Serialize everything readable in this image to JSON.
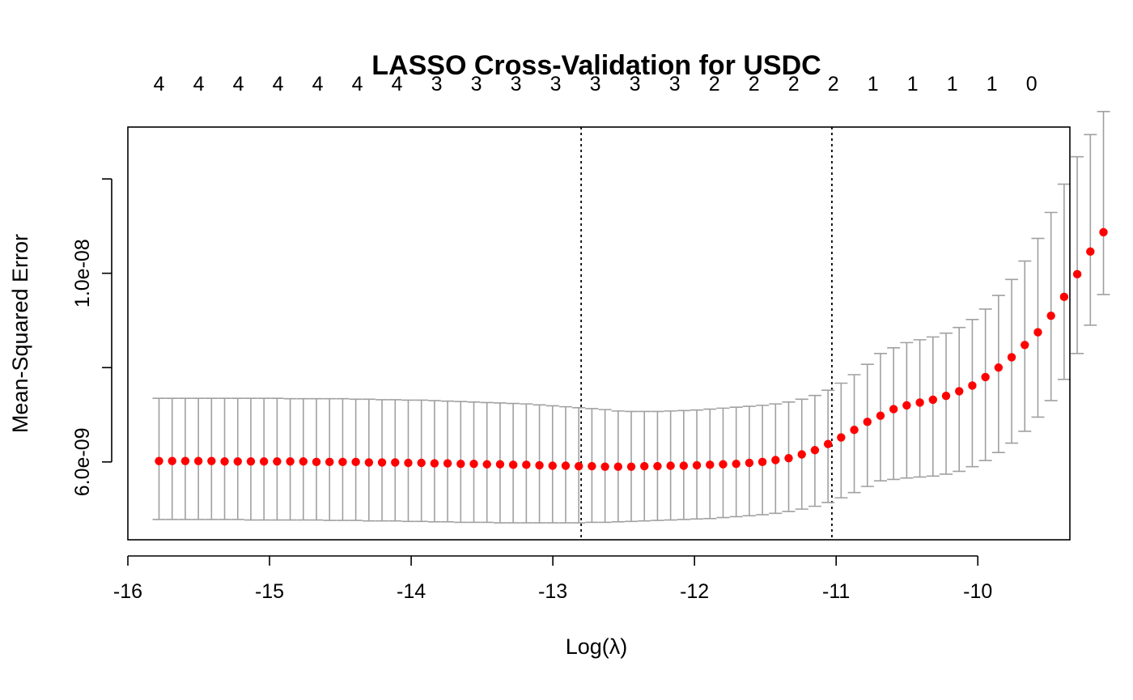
{
  "chart_data": {
    "type": "scatter",
    "title": "LASSO Cross-Validation for USDC",
    "xlabel": "Log(λ)",
    "ylabel": "Mean-Squared Error",
    "xlim": [
      -16,
      -9.35
    ],
    "ylim": [
      4.35e-09,
      1.31e-08
    ],
    "x_ticks": [
      {
        "value": -16,
        "label": "-16"
      },
      {
        "value": -15,
        "label": "-15"
      },
      {
        "value": -14,
        "label": "-14"
      },
      {
        "value": -13,
        "label": "-13"
      },
      {
        "value": -12,
        "label": "-12"
      },
      {
        "value": -11,
        "label": "-11"
      },
      {
        "value": -10,
        "label": "-10"
      }
    ],
    "y_ticks": [
      {
        "value": 6e-09,
        "label": "6.0e-09"
      },
      {
        "value": 8e-09,
        "label": ""
      },
      {
        "value": 1e-08,
        "label": "1.0e-08"
      },
      {
        "value": 1.2e-08,
        "label": ""
      }
    ],
    "top_axis": [
      {
        "x": -15.78,
        "label": "4"
      },
      {
        "x": -15.5,
        "label": "4"
      },
      {
        "x": -15.22,
        "label": "4"
      },
      {
        "x": -14.94,
        "label": "4"
      },
      {
        "x": -14.66,
        "label": "4"
      },
      {
        "x": -14.38,
        "label": "4"
      },
      {
        "x": -14.1,
        "label": "4"
      },
      {
        "x": -13.82,
        "label": "3"
      },
      {
        "x": -13.54,
        "label": "3"
      },
      {
        "x": -13.26,
        "label": "3"
      },
      {
        "x": -12.98,
        "label": "3"
      },
      {
        "x": -12.7,
        "label": "3"
      },
      {
        "x": -12.42,
        "label": "3"
      },
      {
        "x": -12.14,
        "label": "3"
      },
      {
        "x": -11.86,
        "label": "2"
      },
      {
        "x": -11.58,
        "label": "2"
      },
      {
        "x": -11.3,
        "label": "2"
      },
      {
        "x": -11.02,
        "label": "2"
      },
      {
        "x": -10.74,
        "label": "1"
      },
      {
        "x": -10.46,
        "label": "1"
      },
      {
        "x": -10.18,
        "label": "1"
      },
      {
        "x": -9.9,
        "label": "1"
      },
      {
        "x": -9.62,
        "label": "0"
      }
    ],
    "vlines": [
      -12.8,
      -11.03
    ],
    "x_start": -15.78,
    "x_step": 0.0926,
    "series": [
      {
        "color": "#ff0000",
        "errorbar_color": "#a0a0a0",
        "mean": [
          6.02e-09,
          6.02e-09,
          6.02e-09,
          6.02e-09,
          6.02e-09,
          6.01e-09,
          6.01e-09,
          6.01e-09,
          6.01e-09,
          6.01e-09,
          6.01e-09,
          6.01e-09,
          6e-09,
          6e-09,
          6e-09,
          6e-09,
          5.99e-09,
          5.99e-09,
          5.99e-09,
          5.98e-09,
          5.98e-09,
          5.97e-09,
          5.97e-09,
          5.96e-09,
          5.96e-09,
          5.95e-09,
          5.95e-09,
          5.94e-09,
          5.94e-09,
          5.93e-09,
          5.92e-09,
          5.92e-09,
          5.91e-09,
          5.91e-09,
          5.9e-09,
          5.9e-09,
          5.9e-09,
          5.91e-09,
          5.91e-09,
          5.92e-09,
          5.92e-09,
          5.93e-09,
          5.94e-09,
          5.95e-09,
          5.96e-09,
          5.98e-09,
          6e-09,
          6.04e-09,
          6.08e-09,
          6.16e-09,
          6.25e-09,
          6.38e-09,
          6.52e-09,
          6.68e-09,
          6.85e-09,
          6.98e-09,
          7.12e-09,
          7.2e-09,
          7.26e-09,
          7.32e-09,
          7.4e-09,
          7.5e-09,
          7.62e-09,
          7.8e-09,
          8e-09,
          8.22e-09,
          8.48e-09,
          8.75e-09,
          9.1e-09,
          9.5e-09,
          9.98e-09,
          1.046e-08,
          1.087e-08
        ],
        "upper": [
          7.35e-09,
          7.35e-09,
          7.35e-09,
          7.35e-09,
          7.35e-09,
          7.35e-09,
          7.35e-09,
          7.35e-09,
          7.35e-09,
          7.35e-09,
          7.34e-09,
          7.34e-09,
          7.34e-09,
          7.34e-09,
          7.34e-09,
          7.33e-09,
          7.33e-09,
          7.32e-09,
          7.32e-09,
          7.31e-09,
          7.31e-09,
          7.3e-09,
          7.29e-09,
          7.28e-09,
          7.27e-09,
          7.26e-09,
          7.25e-09,
          7.24e-09,
          7.23e-09,
          7.21e-09,
          7.19e-09,
          7.17e-09,
          7.15e-09,
          7.13e-09,
          7.11e-09,
          7.08e-09,
          7.07e-09,
          7.07e-09,
          7.07e-09,
          7.08e-09,
          7.09e-09,
          7.1e-09,
          7.12e-09,
          7.14e-09,
          7.16e-09,
          7.18e-09,
          7.2e-09,
          7.23e-09,
          7.27e-09,
          7.33e-09,
          7.41e-09,
          7.52e-09,
          7.67e-09,
          7.85e-09,
          8.07e-09,
          8.3e-09,
          8.42e-09,
          8.53e-09,
          8.59e-09,
          8.65e-09,
          8.73e-09,
          8.85e-09,
          9.02e-09,
          9.24e-09,
          9.53e-09,
          9.87e-09,
          1.026e-08,
          1.074e-08,
          1.129e-08,
          1.189e-08,
          1.247e-08,
          1.294e-08,
          1.343e-08
        ],
        "lower": [
          4.78e-09,
          4.78e-09,
          4.78e-09,
          4.78e-09,
          4.78e-09,
          4.78e-09,
          4.78e-09,
          4.77e-09,
          4.77e-09,
          4.77e-09,
          4.77e-09,
          4.77e-09,
          4.77e-09,
          4.76e-09,
          4.76e-09,
          4.76e-09,
          4.75e-09,
          4.75e-09,
          4.75e-09,
          4.74e-09,
          4.74e-09,
          4.73e-09,
          4.73e-09,
          4.72e-09,
          4.72e-09,
          4.72e-09,
          4.71e-09,
          4.71e-09,
          4.71e-09,
          4.71e-09,
          4.71e-09,
          4.71e-09,
          4.71e-09,
          4.72e-09,
          4.72e-09,
          4.73e-09,
          4.74e-09,
          4.75e-09,
          4.76e-09,
          4.77e-09,
          4.78e-09,
          4.79e-09,
          4.8e-09,
          4.82e-09,
          4.84e-09,
          4.86e-09,
          4.88e-09,
          4.91e-09,
          4.95e-09,
          5e-09,
          5.06e-09,
          5.14e-09,
          5.24e-09,
          5.35e-09,
          5.48e-09,
          5.6e-09,
          5.63e-09,
          5.66e-09,
          5.68e-09,
          5.7e-09,
          5.74e-09,
          5.8e-09,
          5.9e-09,
          6.03e-09,
          6.2e-09,
          6.4e-09,
          6.65e-09,
          6.95e-09,
          7.3e-09,
          7.75e-09,
          8.3e-09,
          8.9e-09,
          9.55e-09
        ]
      }
    ]
  }
}
